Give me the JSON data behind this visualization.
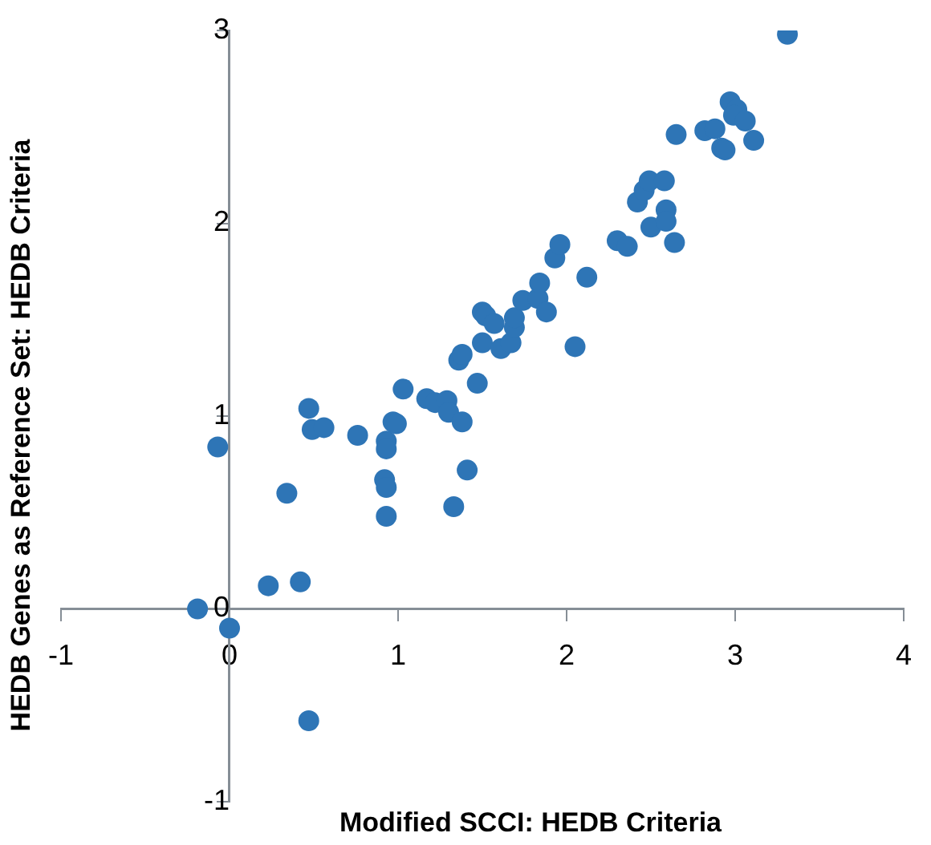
{
  "chart_data": {
    "type": "scatter",
    "xlabel": "Modified SCCI: HEDB Criteria",
    "ylabel": "HEDB Genes as Reference Set: HEDB Criteria",
    "x": [
      -0.19,
      0,
      0.23,
      0.42,
      0.34,
      -0.07,
      0.47,
      0.49,
      0.56,
      0.76,
      0.93,
      0.93,
      0.92,
      0.93,
      0.93,
      0.97,
      0.99,
      1.03,
      1.17,
      1.22,
      1.29,
      1.3,
      1.38,
      1.41,
      1.33,
      1.47,
      1.36,
      1.38,
      1.5,
      1.5,
      1.52,
      1.57,
      1.61,
      1.67,
      1.69,
      1.69,
      1.74,
      1.83,
      1.84,
      1.88,
      1.93,
      1.96,
      2.05,
      2.12,
      2.3,
      2.36,
      2.42,
      2.46,
      2.49,
      2.58,
      2.5,
      2.59,
      2.59,
      2.64,
      2.65,
      2.82,
      2.88,
      2.92,
      2.94,
      2.97,
      3.01,
      2.99,
      3.06,
      3.11,
      3.31,
      0.47
    ],
    "series": [
      {
        "color": "#2e75b6",
        "values": [
          0,
          -0.1,
          0.12,
          0.14,
          0.6,
          0.84,
          1.04,
          0.93,
          0.94,
          0.9,
          0.87,
          0.83,
          0.67,
          0.63,
          0.48,
          0.97,
          0.96,
          1.14,
          1.09,
          1.07,
          1.08,
          1.02,
          0.97,
          0.72,
          0.53,
          1.17,
          1.29,
          1.32,
          1.38,
          1.54,
          1.52,
          1.48,
          1.35,
          1.38,
          1.46,
          1.51,
          1.6,
          1.61,
          1.69,
          1.54,
          1.82,
          1.89,
          1.36,
          1.72,
          1.91,
          1.88,
          2.11,
          2.17,
          2.22,
          2.22,
          1.98,
          2.07,
          2.01,
          1.9,
          2.46,
          2.48,
          2.49,
          2.39,
          2.38,
          2.63,
          2.59,
          2.56,
          2.53,
          2.43,
          2.98,
          -0.58
        ]
      }
    ],
    "xlim": [
      -1,
      4
    ],
    "xticks": [
      -1,
      0,
      1,
      2,
      3,
      4
    ],
    "ylim": [
      -1,
      3
    ],
    "yticks": [
      -1,
      0,
      1,
      2,
      3
    ],
    "grid": false,
    "legend": false,
    "marker": "circle"
  }
}
